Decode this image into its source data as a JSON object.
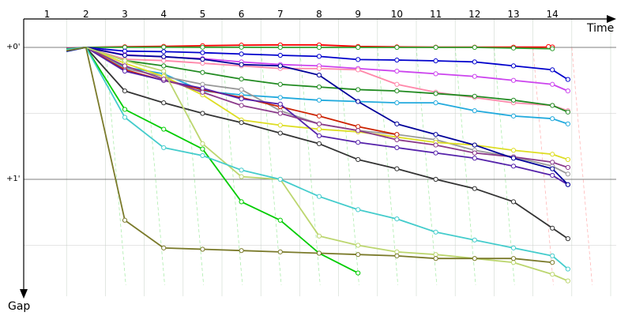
{
  "chart_data": {
    "type": "line",
    "xlabel": "Time",
    "ylabel": "Gap",
    "x_ticks": [
      "1",
      "2",
      "3",
      "4",
      "5",
      "6",
      "7",
      "8",
      "9",
      "10",
      "11",
      "12",
      "13",
      "14"
    ],
    "y_ticks": [
      "+0'",
      "+1'"
    ],
    "lap_seconds": 100,
    "grid": true,
    "series": [
      {
        "color": "#ff0000",
        "points": [
          [
            1.0,
            0.7
          ],
          [
            1.5,
            0
          ],
          [
            2.5,
            -0.5
          ],
          [
            3.5,
            -0.8
          ],
          [
            4.5,
            -1.3
          ],
          [
            5.5,
            -1.7
          ],
          [
            6.5,
            -1.9
          ],
          [
            7.5,
            -1.9
          ],
          [
            8.5,
            -0.7
          ],
          [
            9.5,
            -0.4
          ],
          [
            10.5,
            -0.2
          ],
          [
            11.5,
            -0.2
          ],
          [
            12.5,
            -0.2
          ],
          [
            13.5,
            -0.3
          ],
          [
            13.4,
            -0.6
          ]
        ]
      },
      {
        "color": "#2f9f2f",
        "points": [
          [
            1.0,
            2.5
          ],
          [
            1.5,
            0
          ],
          [
            2.5,
            -0.1
          ],
          [
            3.5,
            -0.2
          ],
          [
            4.5,
            -0.1
          ],
          [
            5.5,
            -0.1
          ],
          [
            6.5,
            0
          ],
          [
            7.5,
            0
          ],
          [
            8.5,
            0
          ],
          [
            9.5,
            0
          ],
          [
            10.5,
            0
          ],
          [
            11.5,
            0
          ],
          [
            12.5,
            0.5
          ],
          [
            13.5,
            1.0
          ]
        ]
      },
      {
        "color": "#0000cc",
        "points": [
          [
            1.0,
            1.5
          ],
          [
            1.5,
            0
          ],
          [
            2.5,
            2.8
          ],
          [
            3.5,
            3.2
          ],
          [
            4.5,
            4.0
          ],
          [
            5.5,
            5.0
          ],
          [
            6.5,
            6.0
          ],
          [
            7.5,
            6.8
          ],
          [
            8.5,
            9.2
          ],
          [
            9.5,
            9.6
          ],
          [
            10.5,
            10.2
          ],
          [
            11.5,
            11.0
          ],
          [
            12.5,
            14.0
          ],
          [
            13.5,
            17.0
          ],
          [
            13.9,
            24.3
          ]
        ]
      },
      {
        "color": "#cc44ee",
        "points": [
          [
            1.0,
            0.8
          ],
          [
            1.5,
            0
          ],
          [
            2.5,
            5.6
          ],
          [
            3.5,
            7.2
          ],
          [
            4.5,
            8.5
          ],
          [
            5.5,
            11.0
          ],
          [
            6.5,
            13.0
          ],
          [
            7.5,
            14.0
          ],
          [
            8.5,
            16.0
          ],
          [
            9.5,
            18.0
          ],
          [
            10.5,
            20.0
          ],
          [
            11.5,
            22.0
          ],
          [
            12.5,
            25.0
          ],
          [
            13.5,
            28.0
          ],
          [
            13.9,
            33.0
          ]
        ]
      },
      {
        "color": "#ff88aa",
        "points": [
          [
            1.0,
            1.0
          ],
          [
            1.5,
            0
          ],
          [
            2.5,
            9.0
          ],
          [
            3.5,
            10.0
          ],
          [
            4.5,
            12.0
          ],
          [
            5.5,
            14.0
          ],
          [
            6.5,
            16.0
          ],
          [
            7.5,
            16.0
          ],
          [
            8.5,
            17.0
          ],
          [
            9.5,
            28.0
          ],
          [
            10.5,
            34.0
          ],
          [
            11.5,
            38.0
          ],
          [
            12.5,
            42.0
          ],
          [
            13.5,
            44.0
          ],
          [
            13.9,
            48.0
          ]
        ]
      },
      {
        "color": "#228b22",
        "points": [
          [
            1.0,
            2.2
          ],
          [
            1.5,
            0
          ],
          [
            2.5,
            10.0
          ],
          [
            3.5,
            14.0
          ],
          [
            4.5,
            19.0
          ],
          [
            5.5,
            24.0
          ],
          [
            6.5,
            28.0
          ],
          [
            7.5,
            30.0
          ],
          [
            8.5,
            32.0
          ],
          [
            9.5,
            33.0
          ],
          [
            10.5,
            35.0
          ],
          [
            11.5,
            37.0
          ],
          [
            12.5,
            40.0
          ],
          [
            13.5,
            44.0
          ],
          [
            13.9,
            49.0
          ]
        ]
      },
      {
        "color": "#22aadd",
        "points": [
          [
            1.0,
            3.0
          ],
          [
            1.5,
            0
          ],
          [
            2.5,
            15.0
          ],
          [
            3.5,
            20.0
          ],
          [
            4.5,
            33.0
          ],
          [
            5.5,
            36.0
          ],
          [
            6.5,
            38.0
          ],
          [
            7.5,
            40.0
          ],
          [
            8.5,
            41.0
          ],
          [
            9.5,
            42.0
          ],
          [
            10.5,
            42.0
          ],
          [
            11.5,
            48.0
          ],
          [
            12.5,
            52.0
          ],
          [
            13.5,
            54.0
          ],
          [
            13.9,
            58.0
          ]
        ]
      },
      {
        "color": "#999999",
        "points": [
          [
            1.0,
            1.5
          ],
          [
            1.5,
            0
          ],
          [
            2.5,
            16.0
          ],
          [
            3.5,
            22.0
          ],
          [
            4.5,
            28.0
          ],
          [
            5.5,
            32.0
          ],
          [
            6.5,
            48.0
          ],
          [
            7.5,
            58.0
          ],
          [
            8.5,
            63.0
          ],
          [
            9.5,
            66.0
          ],
          [
            10.5,
            70.0
          ],
          [
            11.5,
            78.0
          ],
          [
            12.5,
            83.0
          ],
          [
            13.5,
            90.0
          ],
          [
            13.9,
            96.0
          ]
        ]
      },
      {
        "color": "#dddd22",
        "points": [
          [
            1.0,
            2.2
          ],
          [
            1.5,
            0
          ],
          [
            2.5,
            12.0
          ],
          [
            3.5,
            22.0
          ],
          [
            4.5,
            36.0
          ],
          [
            5.5,
            55.0
          ],
          [
            6.5,
            59.0
          ],
          [
            7.5,
            62.0
          ],
          [
            8.5,
            64.0
          ],
          [
            9.5,
            68.0
          ],
          [
            10.5,
            72.0
          ],
          [
            11.5,
            74.0
          ],
          [
            12.5,
            78.0
          ],
          [
            13.5,
            81.0
          ],
          [
            13.9,
            85.0
          ]
        ]
      },
      {
        "color": "#cc2200",
        "points": [
          [
            1.0,
            1.0
          ],
          [
            1.5,
            0
          ],
          [
            2.5,
            17.0
          ],
          [
            3.5,
            25.0
          ],
          [
            4.5,
            32.0
          ],
          [
            5.5,
            38.0
          ],
          [
            6.5,
            45.0
          ],
          [
            7.5,
            52.0
          ],
          [
            8.5,
            60.0
          ],
          [
            9.5,
            66.0
          ]
        ]
      },
      {
        "color": "#5522aa",
        "points": [
          [
            1.0,
            1.0
          ],
          [
            1.5,
            0
          ],
          [
            2.5,
            18.0
          ],
          [
            3.5,
            25.0
          ],
          [
            4.5,
            31.0
          ],
          [
            5.5,
            39.0
          ],
          [
            6.5,
            43.0
          ],
          [
            7.5,
            67.0
          ],
          [
            8.5,
            72.0
          ],
          [
            9.5,
            76.0
          ],
          [
            10.5,
            80.0
          ],
          [
            11.5,
            84.0
          ],
          [
            12.5,
            90.0
          ],
          [
            13.5,
            97.0
          ],
          [
            13.9,
            104.0
          ]
        ]
      },
      {
        "color": "#8b3a8b",
        "points": [
          [
            1.0,
            2.0
          ],
          [
            1.5,
            0
          ],
          [
            2.5,
            14.0
          ],
          [
            3.5,
            24.0
          ],
          [
            4.5,
            34.0
          ],
          [
            5.5,
            44.0
          ],
          [
            6.5,
            50.0
          ],
          [
            7.5,
            58.0
          ],
          [
            8.5,
            63.0
          ],
          [
            9.5,
            70.0
          ],
          [
            10.5,
            74.0
          ],
          [
            11.5,
            80.0
          ],
          [
            12.5,
            83.0
          ],
          [
            13.5,
            87.0
          ],
          [
            13.9,
            91.0
          ]
        ]
      },
      {
        "color": "#000099",
        "points": [
          [
            1.0,
            3.0
          ],
          [
            1.5,
            0
          ],
          [
            2.5,
            6.0
          ],
          [
            3.5,
            7.0
          ],
          [
            4.5,
            9.0
          ],
          [
            5.5,
            13.0
          ],
          [
            6.5,
            14.0
          ],
          [
            7.5,
            21.0
          ],
          [
            8.5,
            41.0
          ],
          [
            9.5,
            58.0
          ],
          [
            10.5,
            66.0
          ],
          [
            11.5,
            74.0
          ],
          [
            12.5,
            84.0
          ],
          [
            13.5,
            92.0
          ],
          [
            13.9,
            104.0
          ]
        ]
      },
      {
        "color": "#333333",
        "points": [
          [
            1.0,
            1.5
          ],
          [
            1.5,
            0
          ],
          [
            2.5,
            33.0
          ],
          [
            3.5,
            42.0
          ],
          [
            4.5,
            50.0
          ],
          [
            5.5,
            57.0
          ],
          [
            6.5,
            65.0
          ],
          [
            7.5,
            73.0
          ],
          [
            8.5,
            85.0
          ],
          [
            9.5,
            92.0
          ],
          [
            10.5,
            100.0
          ],
          [
            11.5,
            107.0
          ],
          [
            12.5,
            117.0
          ],
          [
            13.5,
            137.0
          ],
          [
            13.9,
            145.0
          ]
        ]
      },
      {
        "color": "#bcd66f",
        "points": [
          [
            1.0,
            2.0
          ],
          [
            1.5,
            0
          ],
          [
            2.5,
            10.0
          ],
          [
            3.5,
            18.0
          ],
          [
            4.5,
            73.0
          ],
          [
            5.5,
            98.0
          ],
          [
            6.5,
            100.0
          ],
          [
            7.5,
            143.0
          ],
          [
            8.5,
            150.0
          ],
          [
            9.5,
            155.0
          ],
          [
            10.5,
            157.0
          ],
          [
            11.5,
            160.0
          ],
          [
            12.5,
            163.0
          ],
          [
            13.5,
            172.0
          ],
          [
            13.9,
            177.0
          ]
        ]
      },
      {
        "color": "#00cc00",
        "points": [
          [
            1.0,
            1.2
          ],
          [
            1.5,
            0
          ],
          [
            2.5,
            47.0
          ],
          [
            3.5,
            62.0
          ],
          [
            4.5,
            77.0
          ],
          [
            5.5,
            117.0
          ],
          [
            6.5,
            131.0
          ],
          [
            7.5,
            156.0
          ],
          [
            8.5,
            171.0
          ]
        ]
      },
      {
        "color": "#44cccc",
        "points": [
          [
            1.0,
            1.5
          ],
          [
            1.5,
            0
          ],
          [
            2.5,
            53.0
          ],
          [
            3.5,
            76.0
          ],
          [
            4.5,
            82.0
          ],
          [
            5.5,
            93.0
          ],
          [
            6.5,
            100.0
          ],
          [
            7.5,
            113.0
          ],
          [
            8.5,
            123.0
          ],
          [
            9.5,
            130.0
          ],
          [
            10.5,
            140.0
          ],
          [
            11.5,
            146.0
          ],
          [
            12.5,
            152.0
          ],
          [
            13.5,
            158.0
          ],
          [
            13.9,
            168.0
          ]
        ]
      },
      {
        "color": "#7a7a2a",
        "points": [
          [
            1.0,
            2.5
          ],
          [
            1.5,
            0
          ],
          [
            2.5,
            131.0
          ],
          [
            3.5,
            152.0
          ],
          [
            4.5,
            153.0
          ],
          [
            5.5,
            154.0
          ],
          [
            6.5,
            155.0
          ],
          [
            7.5,
            156.0
          ],
          [
            8.5,
            157.0
          ],
          [
            9.5,
            158.0
          ],
          [
            10.5,
            160.0
          ],
          [
            11.5,
            160.0
          ],
          [
            12.5,
            160.0
          ],
          [
            13.5,
            163.0
          ]
        ]
      }
    ]
  }
}
